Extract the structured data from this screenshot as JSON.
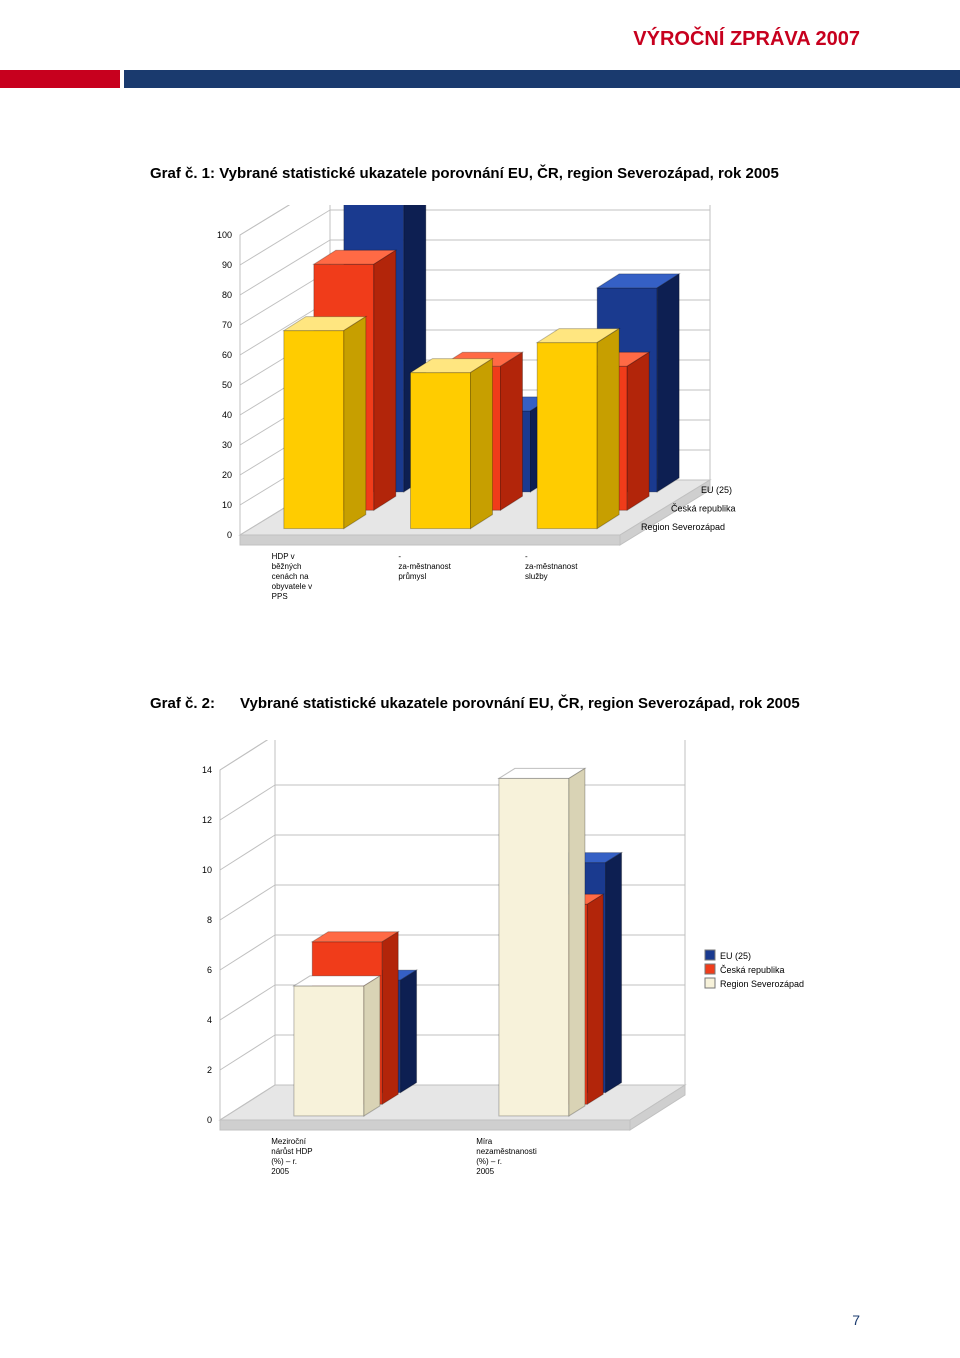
{
  "page": {
    "header_title": "VÝROČNÍ ZPRÁVA 2007",
    "header_title_color": "#c7001e",
    "header_bar_red": "#c7001e",
    "header_bar_blue": "#1a3a6e",
    "page_number": "7",
    "page_number_color": "#1a3a6e",
    "bg": "#ffffff"
  },
  "chart1": {
    "title_prefix": "Graf č. 1:",
    "title_rest": "Vybrané statistické ukazatele porovnání EU, ČR, region Severozápad, rok 2005",
    "title_fontsize": 15,
    "title_color": "#000000",
    "type": "bar3d",
    "categories": [
      "HDP v běžných cenách na obyvatele v PPS",
      "- za-městnanost průmysl",
      "- za-městnanost služby"
    ],
    "series": [
      {
        "name": "EU (25)",
        "color_front": "#1a3a8f",
        "color_top": "#3560c5",
        "color_side": "#0d1f52",
        "values": [
          100,
          27,
          68
        ]
      },
      {
        "name": "Česká republika",
        "color_front": "#f03c1a",
        "color_top": "#ff6a45",
        "color_side": "#b2250a",
        "values": [
          82,
          48,
          48
        ]
      },
      {
        "name": "Region Severozápad",
        "color_front": "#ffcc00",
        "color_top": "#ffe680",
        "color_side": "#c79f00",
        "values": [
          66,
          52,
          62
        ]
      }
    ],
    "ylim": [
      0,
      100
    ],
    "ytick_step": 10,
    "y_label_fontsize": 9,
    "floor_fill": "#e6e6e6",
    "floor_front": "#cfcfcf",
    "wall_fill": "#ffffff",
    "grid_color": "#c0c0c0",
    "axis_font_color": "#000000",
    "cat_label_fontsize": 8,
    "z_label_fontsize": 9
  },
  "chart2": {
    "title_prefix": "Graf č. 2:",
    "title_rest": "Vybrané statistické ukazatele porovnání EU, ČR, region Severozápad, rok 2005",
    "title_fontsize": 15,
    "title_color": "#000000",
    "type": "bar3d",
    "categories": [
      "Meziroční nárůst HDP (%) – r. 2005",
      "Míra nezaměstnanosti (%) – r. 2005"
    ],
    "series": [
      {
        "name": "EU (25)",
        "color_front": "#1a3a8f",
        "color_top": "#3560c5",
        "color_side": "#0d1f52",
        "values": [
          4.5,
          9.2
        ]
      },
      {
        "name": "Česká republika",
        "color_front": "#f03c1a",
        "color_top": "#ff6a45",
        "color_side": "#b2250a",
        "values": [
          6.5,
          8.0
        ]
      },
      {
        "name": "Region Severozápad",
        "color_front": "#f7f2da",
        "color_top": "#ffffff",
        "color_side": "#d9d3b5",
        "values": [
          5.2,
          13.5
        ]
      }
    ],
    "ylim": [
      0,
      14
    ],
    "ytick_step": 2,
    "y_label_fontsize": 9,
    "floor_fill": "#e6e6e6",
    "floor_front": "#cfcfcf",
    "wall_fill": "#ffffff",
    "grid_color": "#c0c0c0",
    "axis_font_color": "#000000",
    "cat_label_fontsize": 8,
    "legend_fontsize": 9
  }
}
